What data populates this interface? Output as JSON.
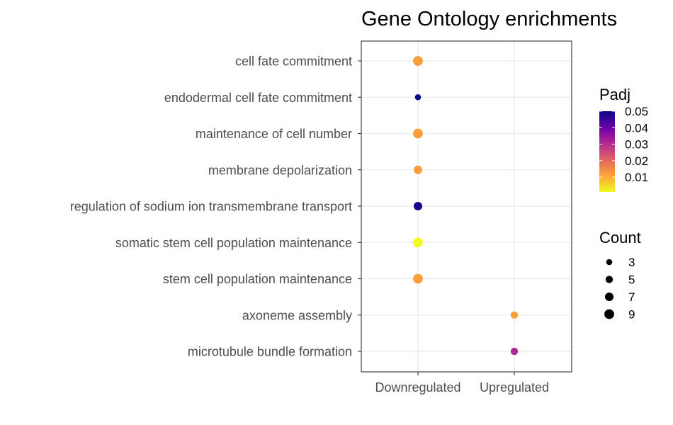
{
  "chart_data": {
    "type": "scatter",
    "title": "Gene Ontology enrichments",
    "xlabel": "",
    "ylabel": "",
    "grid": true,
    "x_categories": [
      "Downregulated",
      "Upregulated"
    ],
    "y_categories": [
      "cell fate commitment",
      "endodermal cell fate commitment",
      "maintenance of cell number",
      "membrane depolarization",
      "regulation of sodium ion transmembrane transport",
      "somatic stem cell population maintenance",
      "stem cell population maintenance",
      "axoneme assembly",
      "microtubule bundle formation"
    ],
    "points": [
      {
        "term": "cell fate commitment",
        "direction": "Downregulated",
        "count": 9,
        "padj": 0.012
      },
      {
        "term": "endodermal cell fate commitment",
        "direction": "Downregulated",
        "count": 3,
        "padj": 0.05
      },
      {
        "term": "maintenance of cell number",
        "direction": "Downregulated",
        "count": 9,
        "padj": 0.012
      },
      {
        "term": "membrane depolarization",
        "direction": "Downregulated",
        "count": 7,
        "padj": 0.012
      },
      {
        "term": "regulation of sodium ion transmembrane transport",
        "direction": "Downregulated",
        "count": 7,
        "padj": 0.049
      },
      {
        "term": "somatic stem cell population maintenance",
        "direction": "Downregulated",
        "count": 9,
        "padj": 0.001
      },
      {
        "term": "stem cell population maintenance",
        "direction": "Downregulated",
        "count": 9,
        "padj": 0.012
      },
      {
        "term": "axoneme assembly",
        "direction": "Upregulated",
        "count": 5,
        "padj": 0.012
      },
      {
        "term": "microtubule bundle formation",
        "direction": "Upregulated",
        "count": 5,
        "padj": 0.031
      }
    ],
    "legend_placement": "right",
    "color_legend": {
      "title": "Padj",
      "ticks": [
        "0.05",
        "0.04",
        "0.03",
        "0.02",
        "0.01"
      ],
      "range": [
        0.001,
        0.05
      ],
      "colors_low_to_high": [
        "#f0f921",
        "#fca636",
        "#e16462",
        "#b12a90",
        "#6a00a8",
        "#0d0887"
      ]
    },
    "size_legend": {
      "title": "Count",
      "values": [
        3,
        5,
        7,
        9
      ],
      "labels": [
        "3",
        "5",
        "7",
        "9"
      ]
    }
  }
}
